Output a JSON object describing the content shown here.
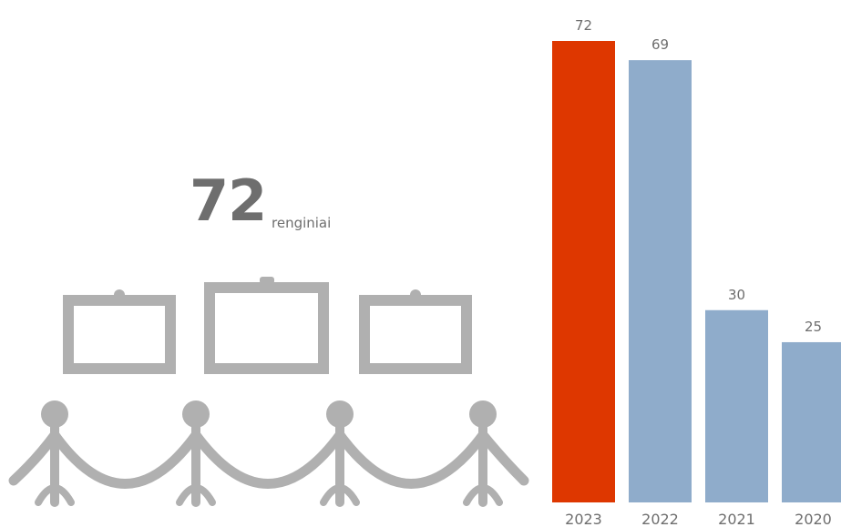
{
  "headline": {
    "value": "72",
    "unit": "renginiai",
    "color": "#6e6e6e",
    "icon": "gallery-exhibition-icon",
    "icon_color": "#b0b0b0"
  },
  "chart_data": {
    "type": "bar",
    "categories": [
      "2023",
      "2022",
      "2021",
      "2020"
    ],
    "values": [
      72,
      69,
      30,
      25
    ],
    "bar_colors": [
      "#de3700",
      "#8faccb",
      "#8faccb",
      "#8faccb"
    ],
    "ylim": [
      0,
      72
    ],
    "title": "",
    "xlabel": "",
    "ylabel": "",
    "grid": false,
    "data_labels": true
  }
}
